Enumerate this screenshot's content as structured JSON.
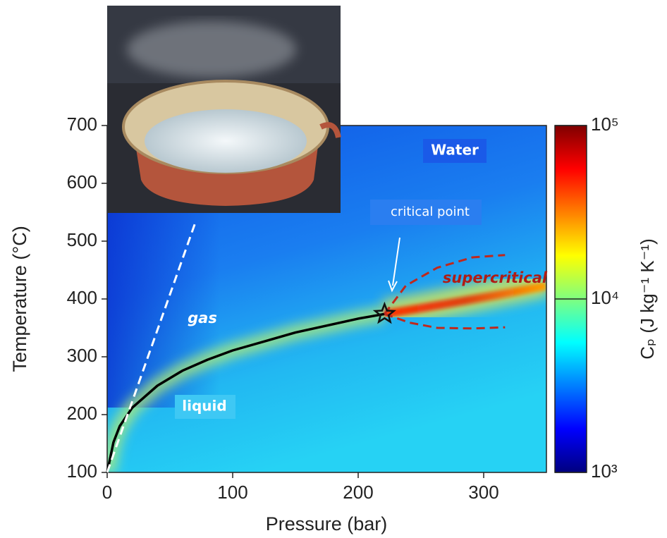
{
  "chart_data": {
    "type": "line",
    "x_label": "Pressure (bar)",
    "y_label": "Temperature (°C)",
    "xlim": [
      0,
      350
    ],
    "ylim": [
      100,
      700
    ],
    "xticks": [
      0,
      100,
      200,
      300
    ],
    "yticks": [
      100,
      200,
      300,
      400,
      500,
      600,
      700
    ],
    "series": [
      {
        "color": "#000000",
        "dash": false,
        "x": [
          0,
          5,
          10,
          20,
          40,
          60,
          80,
          100,
          150,
          200,
          221
        ],
        "values": [
          100,
          152,
          180,
          212,
          250,
          276,
          295,
          311,
          342,
          366,
          374
        ]
      },
      {
        "color": "#ffffff",
        "dash": true,
        "x": [
          0,
          71
        ],
        "values": [
          100,
          537
        ]
      },
      {
        "color": "#c0281c",
        "dash": true,
        "x": [
          221,
          238,
          263,
          291,
          317
        ],
        "values": [
          374,
          423,
          454,
          472,
          476
        ]
      },
      {
        "color": "#c0281c",
        "dash": true,
        "x": [
          221,
          241,
          263,
          291,
          317
        ],
        "values": [
          374,
          359,
          350,
          349,
          351
        ]
      }
    ],
    "critical_point": {
      "x": 221,
      "y": 374
    },
    "annotations": {
      "water": "Water",
      "critical_point": "critical point",
      "supercritical": "supercritical",
      "gas": "gas",
      "liquid": "liquid"
    },
    "colorbar": {
      "label": "Cₚ (J kg⁻¹ K⁻¹)",
      "log": true,
      "clim": [
        1000,
        100000
      ],
      "ticks": [
        {
          "value": 1000,
          "label": "10³"
        },
        {
          "value": 10000,
          "label": "10⁴"
        },
        {
          "value": 100000,
          "label": "10⁵"
        }
      ],
      "colors": [
        "#00007f",
        "#0000ff",
        "#007fff",
        "#00ffff",
        "#7fff7f",
        "#ffff00",
        "#ff7f00",
        "#ff0000",
        "#7f0000"
      ]
    }
  }
}
